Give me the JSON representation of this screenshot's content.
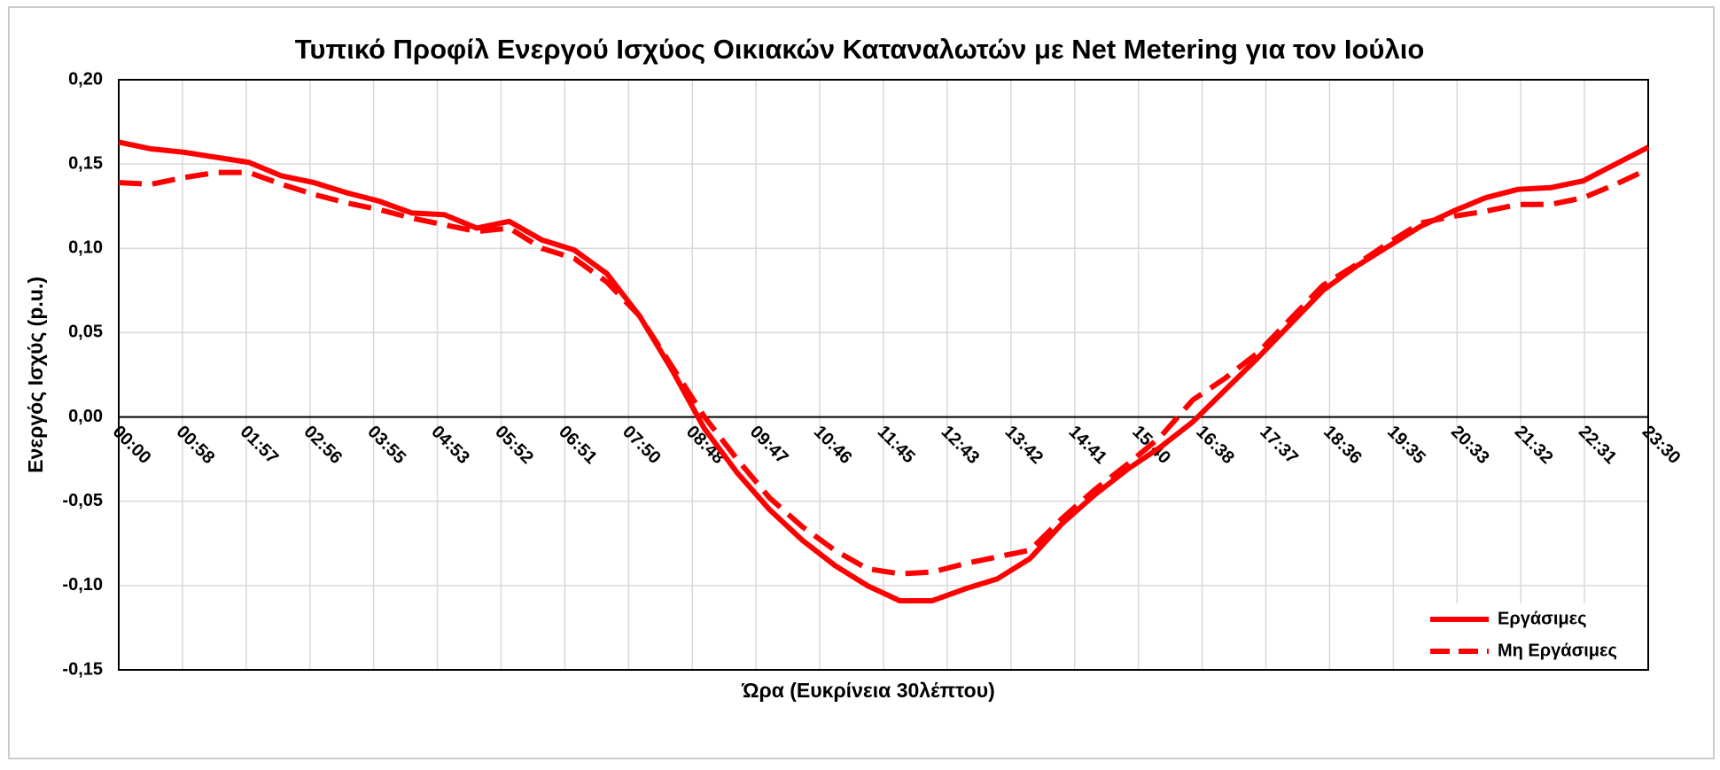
{
  "chart_data": {
    "type": "line",
    "title": "Τυπικό Προφίλ Ενεργού Ισχύος Οικιακών Καταναλωτών με Net Metering για τον Ιούλιο",
    "x_label": "Ώρα (Ευκρίνεια 30λέπτου)",
    "y_label": "Ενεργός Ισχύς (p.u.)",
    "x": [
      0,
      30,
      60,
      90,
      120,
      150,
      180,
      210,
      240,
      270,
      300,
      330,
      360,
      390,
      420,
      450,
      480,
      510,
      540,
      570,
      600,
      630,
      660,
      690,
      720,
      750,
      780,
      810,
      840,
      870,
      900,
      930,
      960,
      990,
      1020,
      1050,
      1080,
      1110,
      1140,
      1170,
      1200,
      1230,
      1260,
      1290,
      1320,
      1350,
      1380,
      1410
    ],
    "series": [
      {
        "name": "Εργάσιμες",
        "color": "#ff0000",
        "dash": false,
        "values": [
          0.163,
          0.159,
          0.157,
          0.154,
          0.151,
          0.143,
          0.139,
          0.133,
          0.128,
          0.121,
          0.12,
          0.112,
          0.116,
          0.105,
          0.099,
          0.085,
          0.06,
          0.028,
          -0.007,
          -0.033,
          -0.055,
          -0.073,
          -0.088,
          -0.1,
          -0.109,
          -0.109,
          -0.102,
          -0.096,
          -0.084,
          -0.063,
          -0.046,
          -0.031,
          -0.018,
          -0.003,
          0.016,
          0.035,
          0.055,
          0.075,
          0.089,
          0.101,
          0.113,
          0.122,
          0.13,
          0.135,
          0.136,
          0.14,
          0.15,
          0.16
        ]
      },
      {
        "name": "Μη Εργάσιμες",
        "color": "#ff0000",
        "dash": true,
        "values": [
          0.139,
          0.138,
          0.142,
          0.145,
          0.145,
          0.138,
          0.132,
          0.127,
          0.123,
          0.118,
          0.114,
          0.11,
          0.112,
          0.1,
          0.094,
          0.08,
          0.06,
          0.03,
          0.0,
          -0.025,
          -0.048,
          -0.065,
          -0.079,
          -0.09,
          -0.093,
          -0.092,
          -0.087,
          -0.083,
          -0.079,
          -0.06,
          -0.043,
          -0.028,
          -0.012,
          0.01,
          0.023,
          0.038,
          0.058,
          0.078,
          0.09,
          0.103,
          0.115,
          0.119,
          0.122,
          0.126,
          0.126,
          0.13,
          0.138,
          0.147
        ]
      }
    ],
    "xlim": [
      0,
      1410
    ],
    "xticks": [
      {
        "value": 0,
        "label": "00:00"
      },
      {
        "value": 58.75,
        "label": "00:58"
      },
      {
        "value": 117.5,
        "label": "01:57"
      },
      {
        "value": 176.25,
        "label": "02:56"
      },
      {
        "value": 235,
        "label": "03:55"
      },
      {
        "value": 293.75,
        "label": "04:53"
      },
      {
        "value": 352.5,
        "label": "05:52"
      },
      {
        "value": 411.25,
        "label": "06:51"
      },
      {
        "value": 470,
        "label": "07:50"
      },
      {
        "value": 528.75,
        "label": "08:48"
      },
      {
        "value": 587.5,
        "label": "09:47"
      },
      {
        "value": 646.25,
        "label": "10:46"
      },
      {
        "value": 705,
        "label": "11:45"
      },
      {
        "value": 763.75,
        "label": "12:43"
      },
      {
        "value": 822.5,
        "label": "13:42"
      },
      {
        "value": 881.25,
        "label": "14:41"
      },
      {
        "value": 940,
        "label": "15:40"
      },
      {
        "value": 998.75,
        "label": "16:38"
      },
      {
        "value": 1057.5,
        "label": "17:37"
      },
      {
        "value": 1116.25,
        "label": "18:36"
      },
      {
        "value": 1175,
        "label": "19:35"
      },
      {
        "value": 1233.75,
        "label": "20:33"
      },
      {
        "value": 1292.5,
        "label": "21:32"
      },
      {
        "value": 1351.25,
        "label": "22:31"
      },
      {
        "value": 1410,
        "label": "23:30"
      }
    ],
    "ylim": [
      -0.15,
      0.2
    ],
    "yticks": [
      {
        "value": -0.15,
        "label": "-0,15"
      },
      {
        "value": -0.1,
        "label": "-0,10"
      },
      {
        "value": -0.05,
        "label": "-0,05"
      },
      {
        "value": 0,
        "label": "0,00"
      },
      {
        "value": 0.05,
        "label": "0,05"
      },
      {
        "value": 0.1,
        "label": "0,10"
      },
      {
        "value": 0.15,
        "label": "0,15"
      },
      {
        "value": 0.2,
        "label": "0,20"
      }
    ],
    "grid": true,
    "legend": "lower right"
  }
}
